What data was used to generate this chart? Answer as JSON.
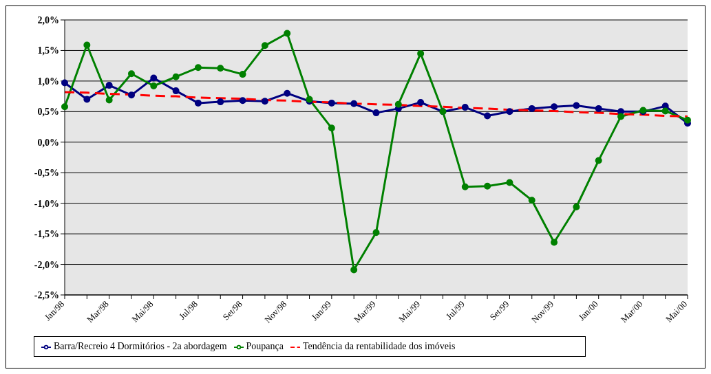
{
  "chart_data": {
    "type": "line",
    "categories": [
      "Jan/98",
      null,
      "Mar/98",
      null,
      "Mai/98",
      null,
      "Jul/98",
      null,
      "Set/98",
      null,
      "Nov/98",
      null,
      "Jan/99",
      null,
      "Mar/99",
      null,
      "Mai/99",
      null,
      "Jul/99",
      null,
      "Set/99",
      null,
      "Nov/99",
      null,
      "Jan/00",
      null,
      "Mar/00",
      null,
      "Mai/00"
    ],
    "series": [
      {
        "name": "Barra/Recreio 4 Dormitórios - 2a abordagem",
        "color": "#000080",
        "values": [
          0.97,
          0.7,
          0.93,
          0.77,
          1.05,
          0.84,
          0.64,
          0.66,
          0.68,
          0.67,
          0.8,
          0.67,
          0.64,
          0.63,
          0.48,
          0.55,
          0.65,
          0.5,
          0.57,
          0.43,
          0.5,
          0.55,
          0.58,
          0.6,
          0.55,
          0.5,
          0.5,
          0.59,
          0.31
        ]
      },
      {
        "name": "Poupança",
        "color": "#008000",
        "values": [
          0.58,
          1.59,
          0.69,
          1.12,
          0.92,
          1.07,
          1.22,
          1.21,
          1.11,
          1.58,
          1.78,
          0.7,
          0.23,
          -2.09,
          -1.48,
          0.62,
          1.45,
          0.5,
          -0.73,
          -0.72,
          -0.66,
          -0.95,
          -1.64,
          -1.06,
          -0.3,
          0.42,
          0.52,
          0.51,
          0.36
        ]
      },
      {
        "name": "Tendência da rentabilidade dos imóveis",
        "color": "#ff0000",
        "marker": "none",
        "line_style": "dashed",
        "values": [
          0.82,
          0.81,
          0.79,
          0.78,
          0.76,
          0.75,
          0.73,
          0.72,
          0.71,
          0.69,
          0.68,
          0.66,
          0.65,
          0.63,
          0.62,
          0.61,
          0.59,
          0.58,
          0.56,
          0.55,
          0.53,
          0.52,
          0.51,
          0.49,
          0.48,
          0.46,
          0.45,
          0.43,
          0.42
        ]
      }
    ],
    "ylim": [
      -2.5,
      2
    ],
    "yticks": [
      {
        "value": -2.5,
        "label": "-2,5%"
      },
      {
        "value": -2,
        "label": "-2,0%"
      },
      {
        "value": -1.5,
        "label": "-1,5%"
      },
      {
        "value": -1,
        "label": "-1,0%"
      },
      {
        "value": -0.5,
        "label": "-0,5%"
      },
      {
        "value": 0,
        "label": "0,0%"
      },
      {
        "value": 0.5,
        "label": "0,5%"
      },
      {
        "value": 1,
        "label": "1,0%"
      },
      {
        "value": 1.5,
        "label": "1,5%"
      },
      {
        "value": 2,
        "label": "2,0%"
      }
    ],
    "grid": "y",
    "legend": "bottom",
    "marker": "circle",
    "line_style": "solid"
  }
}
